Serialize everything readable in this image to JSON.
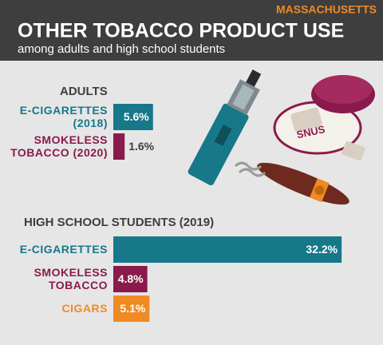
{
  "header": {
    "state": "MASSACHUSETTS",
    "title": "OTHER TOBACCO PRODUCT USE",
    "subtitle": "among adults and high school students"
  },
  "chart_data": [
    {
      "type": "bar",
      "orientation": "horizontal",
      "title": "ADULTS",
      "categories": [
        [
          "E-CIGARETTES",
          "(2018)"
        ],
        [
          "SMOKELESS",
          "TOBACCO (2020)"
        ]
      ],
      "values": [
        5.6,
        1.6
      ],
      "value_labels": [
        "5.6%",
        "1.6%"
      ],
      "colors": [
        "#17788a",
        "#8a1a4b"
      ],
      "xlim": [
        0,
        35
      ]
    },
    {
      "type": "bar",
      "orientation": "horizontal",
      "title": "HIGH SCHOOL STUDENTS (2019)",
      "categories": [
        [
          "E-CIGARETTES"
        ],
        [
          "SMOKELESS",
          "TOBACCO"
        ],
        [
          "CIGARS"
        ]
      ],
      "values": [
        32.2,
        4.8,
        5.1
      ],
      "value_labels": [
        "32.2%",
        "4.8%",
        "5.1%"
      ],
      "colors": [
        "#17788a",
        "#8a1a4b",
        "#f08a24"
      ],
      "xlim": [
        0,
        35
      ]
    }
  ]
}
